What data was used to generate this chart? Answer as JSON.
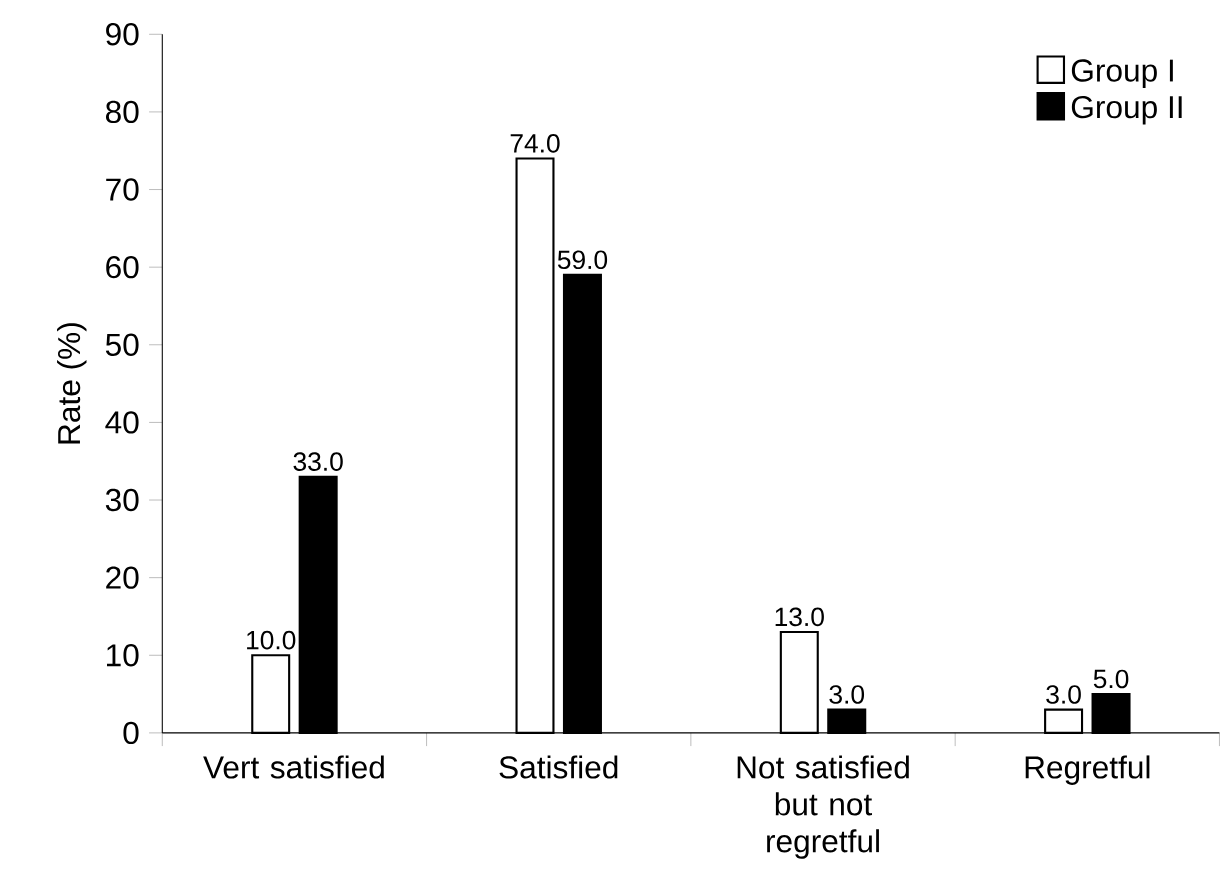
{
  "chart_data": {
    "type": "bar",
    "ylabel": "Rate (%)",
    "categories": [
      "Vert satisfied",
      "Satisfied",
      "Not satisfied but not regretful",
      "Regretful"
    ],
    "series": [
      {
        "name": "Group I",
        "color": "#ffffff",
        "values": [
          10.0,
          74.0,
          13.0,
          3.0
        ],
        "value_labels": [
          "10.0",
          "74.0",
          "13.0",
          "3.0"
        ]
      },
      {
        "name": "Group II",
        "color": "#000000",
        "values": [
          33.0,
          59.0,
          3.0,
          5.0
        ],
        "value_labels": [
          "33.0",
          "59.0",
          "3.0",
          "5.0"
        ]
      }
    ],
    "ylim": [
      0,
      90
    ],
    "yticks": [
      0,
      10,
      20,
      30,
      40,
      50,
      60,
      70,
      80,
      90
    ],
    "legend": "top right",
    "grid": false
  }
}
